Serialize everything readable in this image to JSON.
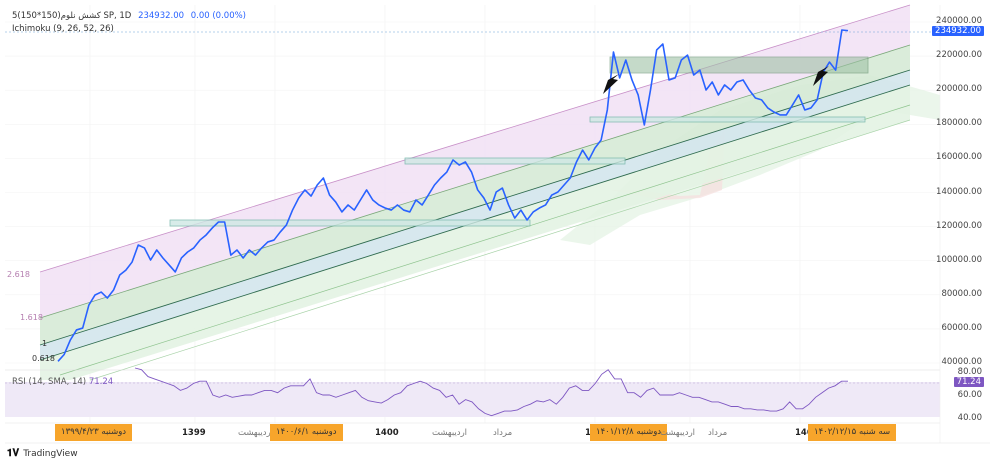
{
  "header": {
    "symbol_line": "5(150*150)کشش نلوم SP, 1D",
    "last_price": "234932.00",
    "change": "0.00 (0.00%)",
    "indicator": "Ichimoku (9, 26, 52, 26)"
  },
  "price_axis": {
    "ticks": [
      "240000.00",
      "220000.00",
      "200000.00",
      "180000.00",
      "160000.00",
      "140000.00",
      "120000.00",
      "100000.00",
      "80000.00",
      "60000.00",
      "40000.00"
    ],
    "tick_values": [
      240000,
      220000,
      200000,
      180000,
      160000,
      140000,
      120000,
      100000,
      80000,
      60000,
      40000
    ],
    "current_price_tag": "234932.00"
  },
  "fib_labels": [
    "2.618",
    "1.618",
    "1",
    "0.618"
  ],
  "rsi": {
    "legend": "RSI (14, SMA, 14)",
    "legend_value": "71.24",
    "ticks": [
      "80.00",
      "60.00",
      "40.00"
    ],
    "tick_values": [
      80,
      60,
      40
    ],
    "current_tag": "71.24",
    "values": [
      88,
      82,
      76,
      74,
      72,
      70,
      68,
      64,
      66,
      70,
      72,
      72,
      60,
      58,
      60,
      58,
      59,
      60,
      60,
      62,
      64,
      64,
      62,
      66,
      68,
      68,
      68,
      74,
      62,
      60,
      60,
      58,
      60,
      62,
      64,
      58,
      55,
      54,
      53,
      56,
      60,
      62,
      68,
      70,
      72,
      70,
      66,
      64,
      58,
      60,
      52,
      56,
      54,
      48,
      44,
      42,
      44,
      46,
      46,
      47,
      50,
      52,
      55,
      54,
      56,
      52,
      58,
      66,
      68,
      64,
      64,
      70,
      78,
      82,
      74,
      74,
      62,
      62,
      58,
      64,
      66,
      60,
      60,
      60,
      62,
      60,
      58,
      58,
      56,
      54,
      54,
      52,
      50,
      50,
      48,
      48,
      47,
      47,
      46,
      46,
      48,
      54,
      48,
      48,
      52,
      58,
      62,
      66,
      68,
      72,
      72
    ]
  },
  "price_series": [
    41000,
    45000,
    53500,
    59400,
    60500,
    74000,
    79900,
    81600,
    78100,
    82800,
    91600,
    94500,
    99200,
    109200,
    107500,
    100400,
    106300,
    101600,
    97500,
    93400,
    101600,
    105100,
    107500,
    112100,
    115100,
    119200,
    122700,
    122700,
    103300,
    106300,
    101600,
    106300,
    103300,
    107500,
    111000,
    112100,
    116800,
    120900,
    129700,
    136800,
    141500,
    137900,
    144400,
    148500,
    138500,
    134400,
    128600,
    132700,
    129700,
    135600,
    141500,
    135600,
    132700,
    130900,
    129700,
    132700,
    129700,
    128600,
    135600,
    132700,
    138500,
    144400,
    148500,
    152000,
    159100,
    156100,
    157900,
    152000,
    141500,
    136800,
    129700,
    140300,
    142600,
    132700,
    125000,
    129700,
    123900,
    128600,
    130900,
    132700,
    138500,
    140300,
    144400,
    148500,
    157900,
    164900,
    159100,
    166100,
    170800,
    188400,
    222400,
    207200,
    217700,
    206000,
    197200,
    179600,
    200100,
    223600,
    227100,
    206000,
    207200,
    217700,
    220600,
    208900,
    211800,
    200100,
    204800,
    197200,
    203100,
    200100,
    204800,
    206000,
    200100,
    195400,
    194300,
    189600,
    187200,
    185500,
    185500,
    191300,
    197200,
    188400,
    189600,
    194300,
    210700,
    216500,
    211800,
    235300,
    234932
  ],
  "time_axis": {
    "labels": [
      {
        "text": "1399",
        "year": true
      },
      {
        "text": "اردیبهشت",
        "year": false
      },
      {
        "text": "1400",
        "year": true
      },
      {
        "text": "اردیبهشت",
        "year": false
      },
      {
        "text": "مرداد",
        "year": false
      },
      {
        "text": "1",
        "year": true
      },
      {
        "text": "اردیبهشت",
        "year": false
      },
      {
        "text": "مرداد",
        "year": false
      },
      {
        "text": "140",
        "year": true
      }
    ],
    "date_tags": [
      "دوشنبه ۱۳۹۹/۴/۲۳",
      "دوشنبه ۱۴۰۰/۶/۱",
      "دوشنبه ۱۴۰۱/۱۲/۸",
      "سه شنبه ۱۴۰۲/۱۲/۱۵"
    ]
  },
  "colors": {
    "price_line": "#2962ff",
    "rsi_line": "#7e57c2",
    "date_tag": "#f7a52b",
    "fib_top": "#e8d3ef",
    "fib_mid": "#cfe6cf"
  },
  "branding": {
    "name": "TradingView"
  }
}
